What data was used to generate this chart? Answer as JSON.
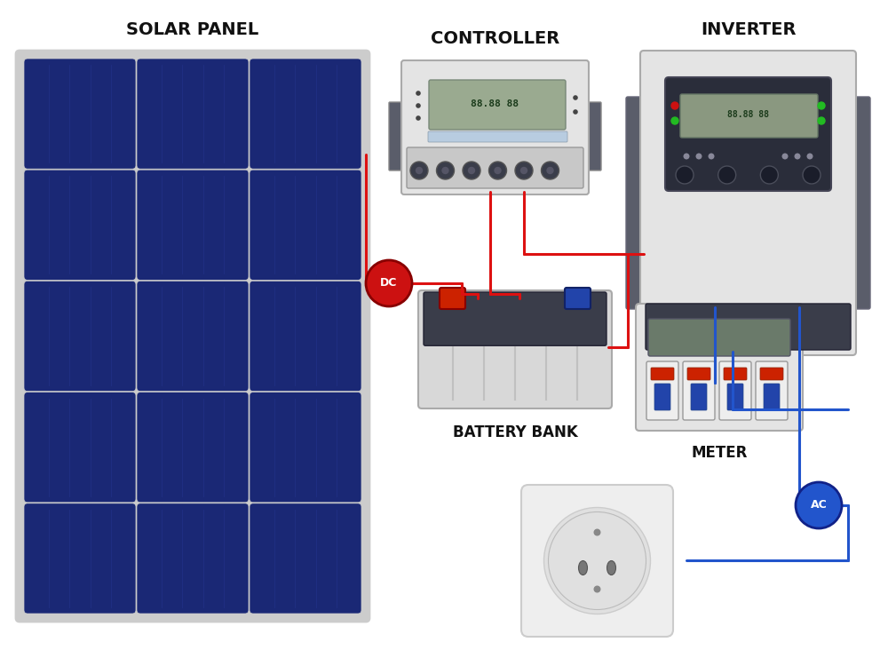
{
  "bg_color": "#ffffff",
  "colors": {
    "solar_cell": "#1a2875",
    "solar_cell_dark": "#0d1a5c",
    "solar_frame": "#cccccc",
    "solar_cell_lines": "#2a3a9a",
    "device_body": "#e8e8e8",
    "device_light": "#f0f0f0",
    "device_dark": "#3a3d4a",
    "device_medium": "#5a5d6a",
    "device_handle": "#5a5d6a",
    "lcd_bg": "#9aaa90",
    "lcd_bg2": "#8a9880",
    "lcd_text": "#2a5a2a",
    "red_wire": "#dd1111",
    "blue_wire": "#2255cc",
    "dc_circle": "#cc1111",
    "ac_circle": "#2255cc",
    "white_text": "#ffffff",
    "battery_body": "#d8d8d8",
    "battery_top": "#3a3d4a",
    "battery_stripes": "#c0c0c0",
    "bat_term_red": "#cc2200",
    "bat_term_black": "#222222",
    "meter_body": "#e4e4e4",
    "outlet_body": "#eeeeee",
    "outlet_inner": "#e0e0e0",
    "outlet_hole": "#777777",
    "outlet_border": "#cccccc",
    "inverter_body": "#e4e4e4",
    "inverter_bottom": "#3a3d4a",
    "inverter_handle": "#5a5d6a",
    "ctrl_body": "#e4e4e4",
    "ctrl_handle": "#5a5d6a",
    "ctrl_btn_bg": "#3a3d4a",
    "ctrl_bar": "#b8cce0",
    "label_color": "#111111"
  },
  "labels": {
    "solar_panel": "SOLAR PANEL",
    "controller": "CONTROLLER",
    "inverter": "INVERTER",
    "battery": "BATTERY BANK",
    "meter": "METER",
    "dc": "DC",
    "ac": "AC"
  },
  "layout": {
    "fig_w": 10.0,
    "fig_h": 7.41,
    "dpi": 100
  }
}
